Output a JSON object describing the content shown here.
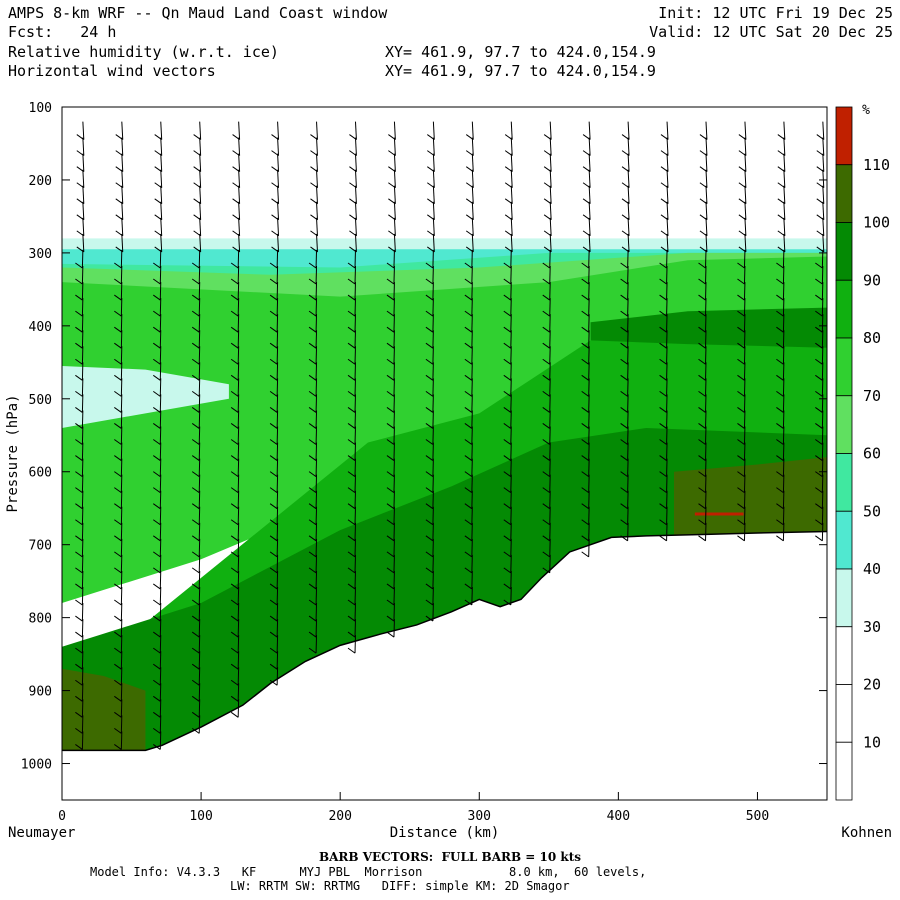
{
  "header": {
    "title": "AMPS 8-km WRF -- Qn Maud Land Coast window",
    "forecast": "Fcst:   24 h",
    "field1": "Relative humidity (w.r.t. ice)",
    "field2": "Horizontal wind vectors",
    "xy1": "XY= 461.9, 97.7 to 424.0,154.9",
    "xy2": "XY= 461.9, 97.7 to 424.0,154.9",
    "init": "Init: 12 UTC Fri 19 Dec 25",
    "valid": "Valid: 12 UTC Sat 20 Dec 25"
  },
  "chart_data": {
    "type": "cross-section",
    "x_axis": {
      "label": "Distance (km)",
      "range": [
        0,
        550
      ],
      "ticks": [
        0,
        100,
        200,
        300,
        400,
        500
      ],
      "left_endpoint": "Neumayer",
      "right_endpoint": "Kohnen"
    },
    "y_axis": {
      "label": "Pressure (hPa)",
      "range": [
        1050,
        100
      ],
      "ticks": [
        100,
        200,
        300,
        400,
        500,
        600,
        700,
        800,
        900,
        1000
      ]
    },
    "colorbar": {
      "unit": "%",
      "levels": [
        10,
        20,
        30,
        40,
        50,
        60,
        70,
        80,
        90,
        100,
        110
      ],
      "colors": [
        "#ffffff",
        "#ffffff",
        "#ffffff",
        "#c8f8ec",
        "#50e8d0",
        "#40e8a0",
        "#60e060",
        "#30d030",
        "#10b010",
        "#048a04",
        "#3d6a00",
        "#c02000"
      ]
    },
    "terrain_surface_hPa": {
      "x": [
        0,
        60,
        72,
        100,
        130,
        150,
        175,
        200,
        230,
        255,
        280,
        300,
        315,
        330,
        345,
        365,
        395,
        420,
        460,
        500,
        550
      ],
      "p": [
        982,
        982,
        975,
        950,
        920,
        890,
        860,
        838,
        822,
        810,
        792,
        775,
        785,
        775,
        745,
        710,
        690,
        688,
        686,
        684,
        682
      ]
    },
    "rh_field_regions": [
      {
        "description_x": [
          0,
          550
        ],
        "p_top": 280,
        "p_bottom": 300,
        "rh_min": 30,
        "rh_max": 40
      },
      {
        "description_x": [
          0,
          100
        ],
        "p_top": 460,
        "p_bottom": 530,
        "rh_min": 30,
        "rh_max": 40
      },
      {
        "description_x": [
          380,
          550
        ],
        "p_top": 380,
        "p_bottom": 420,
        "rh_min": 90,
        "rh_max": 100
      },
      {
        "description_x": [
          450,
          550
        ],
        "p_top": 620,
        "p_bottom": 680,
        "rh_min": 100,
        "rh_max": 110
      },
      {
        "description_x": [
          0,
          60
        ],
        "p_top": 860,
        "p_bottom": 980,
        "rh_min": 100,
        "rh_max": 110
      }
    ],
    "barb_note": "BARB VECTORS:  FULL BARB = 10 kts"
  },
  "footer": {
    "barb_title": "BARB VECTORS:  FULL BARB = 10 kts",
    "model_line": "Model Info: V4.3.3   KF      MYJ PBL  Morrison            8.0 km,  60 levels,",
    "physics_line": "LW: RRTM SW: RRTMG   DIFF: simple KM: 2D Smagor"
  }
}
